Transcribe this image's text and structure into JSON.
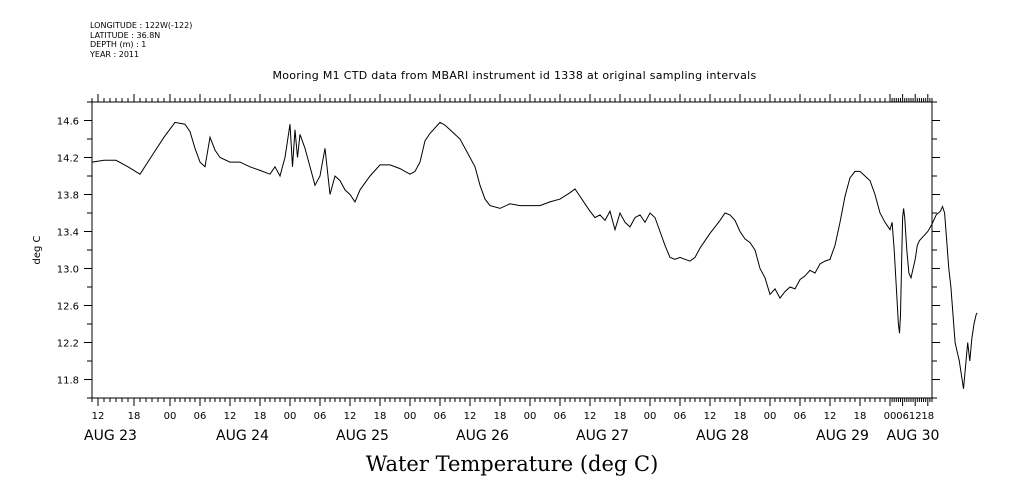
{
  "header": {
    "longitude": "LONGITUDE : 122W(-122)",
    "latitude": "LATITUDE : 36.8N",
    "depth": "DEPTH (m) : 1",
    "year": "YEAR : 2011"
  },
  "chart_data": {
    "type": "line",
    "title": "Mooring M1 CTD data from MBARI instrument id 1338 at original sampling intervals",
    "subtitle": "Water Temperature (deg C)",
    "xlabel": "",
    "ylabel": "deg C",
    "ylim": [
      11.6,
      14.8
    ],
    "xlim_hours_from_aug23_00": [
      -13,
      164
    ],
    "y_ticks": [
      "11.8",
      "12.2",
      "12.6",
      "13.0",
      "13.4",
      "13.8",
      "14.2",
      "14.6"
    ],
    "y_tick_values": [
      11.8,
      12.2,
      12.6,
      13.0,
      13.4,
      13.8,
      14.2,
      14.6
    ],
    "x_hour_ticks": [
      {
        "h": -12,
        "label": "12"
      },
      {
        "h": -6,
        "label": "18"
      },
      {
        "h": 0,
        "label": "00"
      },
      {
        "h": 6,
        "label": "06"
      },
      {
        "h": 12,
        "label": "12"
      },
      {
        "h": 18,
        "label": "18"
      },
      {
        "h": 24,
        "label": "00"
      },
      {
        "h": 30,
        "label": "06"
      },
      {
        "h": 36,
        "label": "12"
      },
      {
        "h": 42,
        "label": "18"
      },
      {
        "h": 48,
        "label": "00"
      },
      {
        "h": 54,
        "label": "06"
      },
      {
        "h": 60,
        "label": "12"
      },
      {
        "h": 66,
        "label": "18"
      },
      {
        "h": 72,
        "label": "00"
      },
      {
        "h": 78,
        "label": "06"
      },
      {
        "h": 84,
        "label": "12"
      },
      {
        "h": 90,
        "label": "18"
      },
      {
        "h": 96,
        "label": "00"
      },
      {
        "h": 102,
        "label": "06"
      },
      {
        "h": 108,
        "label": "12"
      },
      {
        "h": 114,
        "label": "18"
      },
      {
        "h": 120,
        "label": "00"
      },
      {
        "h": 126,
        "label": "06"
      },
      {
        "h": 132,
        "label": "12"
      },
      {
        "h": 138,
        "label": "18"
      },
      {
        "h": 144,
        "label": "00"
      },
      {
        "h": 150,
        "label": "06"
      },
      {
        "h": 156,
        "label": "12"
      },
      {
        "h": 162,
        "label": "18"
      }
    ],
    "x_date_labels": [
      {
        "h": -12,
        "label": "AUG 23"
      },
      {
        "h": 12,
        "label": "AUG 24"
      },
      {
        "h": 36,
        "label": "AUG 25"
      },
      {
        "h": 60,
        "label": "AUG 26"
      },
      {
        "h": 84,
        "label": "AUG 27"
      },
      {
        "h": 108,
        "label": "AUG 28"
      },
      {
        "h": 132,
        "label": "AUG 29"
      },
      {
        "h": 149,
        "label": "AUG 30"
      }
    ],
    "series": [
      {
        "line_color": "#000000",
        "points": [
          [
            -13,
            14.15
          ],
          [
            -11,
            14.17
          ],
          [
            -9,
            14.17
          ],
          [
            -7,
            14.1
          ],
          [
            -5,
            14.02
          ],
          [
            -3,
            14.22
          ],
          [
            -1,
            14.42
          ],
          [
            1,
            14.58
          ],
          [
            3,
            14.56
          ],
          [
            4,
            14.48
          ],
          [
            5,
            14.3
          ],
          [
            6,
            14.15
          ],
          [
            7,
            14.1
          ],
          [
            8,
            14.42
          ],
          [
            9,
            14.28
          ],
          [
            10,
            14.2
          ],
          [
            12,
            14.15
          ],
          [
            14,
            14.15
          ],
          [
            16,
            14.1
          ],
          [
            18,
            14.06
          ],
          [
            20,
            14.02
          ],
          [
            21,
            14.1
          ],
          [
            22,
            14.0
          ],
          [
            23,
            14.2
          ],
          [
            24,
            14.56
          ],
          [
            24.5,
            14.1
          ],
          [
            25,
            14.5
          ],
          [
            25.5,
            14.2
          ],
          [
            26,
            14.45
          ],
          [
            27,
            14.3
          ],
          [
            28,
            14.1
          ],
          [
            29,
            13.9
          ],
          [
            30,
            14.0
          ],
          [
            31,
            14.3
          ],
          [
            32,
            13.8
          ],
          [
            33,
            14.0
          ],
          [
            34,
            13.95
          ],
          [
            35,
            13.85
          ],
          [
            36,
            13.8
          ],
          [
            37,
            13.72
          ],
          [
            38,
            13.85
          ],
          [
            40,
            14.0
          ],
          [
            42,
            14.12
          ],
          [
            44,
            14.12
          ],
          [
            46,
            14.08
          ],
          [
            48,
            14.02
          ],
          [
            49,
            14.05
          ],
          [
            50,
            14.15
          ],
          [
            51,
            14.38
          ],
          [
            52,
            14.46
          ],
          [
            54,
            14.58
          ],
          [
            55,
            14.55
          ],
          [
            56,
            14.5
          ],
          [
            58,
            14.4
          ],
          [
            60,
            14.2
          ],
          [
            61,
            14.1
          ],
          [
            62,
            13.9
          ],
          [
            63,
            13.75
          ],
          [
            64,
            13.68
          ],
          [
            66,
            13.65
          ],
          [
            68,
            13.7
          ],
          [
            70,
            13.68
          ],
          [
            72,
            13.68
          ],
          [
            74,
            13.68
          ],
          [
            76,
            13.72
          ],
          [
            78,
            13.75
          ],
          [
            80,
            13.82
          ],
          [
            81,
            13.86
          ],
          [
            82,
            13.78
          ],
          [
            83,
            13.7
          ],
          [
            84,
            13.62
          ],
          [
            85,
            13.55
          ],
          [
            86,
            13.58
          ],
          [
            87,
            13.52
          ],
          [
            88,
            13.62
          ],
          [
            89,
            13.42
          ],
          [
            90,
            13.6
          ],
          [
            91,
            13.5
          ],
          [
            92,
            13.45
          ],
          [
            93,
            13.55
          ],
          [
            94,
            13.58
          ],
          [
            95,
            13.5
          ],
          [
            96,
            13.6
          ],
          [
            97,
            13.55
          ],
          [
            98,
            13.4
          ],
          [
            99,
            13.25
          ],
          [
            100,
            13.12
          ],
          [
            101,
            13.1
          ],
          [
            102,
            13.12
          ],
          [
            103,
            13.1
          ],
          [
            104,
            13.08
          ],
          [
            105,
            13.12
          ],
          [
            106,
            13.22
          ],
          [
            107,
            13.3
          ],
          [
            108,
            13.38
          ],
          [
            109,
            13.45
          ],
          [
            110,
            13.52
          ],
          [
            111,
            13.6
          ],
          [
            112,
            13.58
          ],
          [
            113,
            13.52
          ],
          [
            114,
            13.4
          ],
          [
            115,
            13.32
          ],
          [
            116,
            13.28
          ],
          [
            117,
            13.2
          ],
          [
            118,
            13.0
          ],
          [
            119,
            12.9
          ],
          [
            120,
            12.72
          ],
          [
            121,
            12.78
          ],
          [
            122,
            12.68
          ],
          [
            123,
            12.75
          ],
          [
            124,
            12.8
          ],
          [
            125,
            12.78
          ],
          [
            126,
            12.88
          ],
          [
            127,
            12.92
          ],
          [
            128,
            12.98
          ],
          [
            129,
            12.95
          ],
          [
            130,
            13.05
          ],
          [
            131,
            13.08
          ],
          [
            132,
            13.1
          ],
          [
            133,
            13.25
          ],
          [
            134,
            13.5
          ],
          [
            135,
            13.78
          ],
          [
            136,
            13.98
          ],
          [
            137,
            14.05
          ],
          [
            138,
            14.05
          ],
          [
            139,
            14.0
          ],
          [
            140,
            13.95
          ],
          [
            141,
            13.8
          ],
          [
            142,
            13.6
          ],
          [
            143,
            13.5
          ],
          [
            144,
            13.42
          ],
          [
            145,
            13.5
          ],
          [
            146,
            13.2
          ],
          [
            147,
            12.8
          ],
          [
            148,
            12.4
          ],
          [
            148.5,
            12.3
          ],
          [
            149,
            12.5
          ],
          [
            149.5,
            13.0
          ],
          [
            150,
            13.55
          ],
          [
            150.5,
            13.65
          ],
          [
            151,
            13.55
          ],
          [
            152,
            13.2
          ],
          [
            153,
            12.95
          ],
          [
            154,
            12.9
          ],
          [
            155,
            13.0
          ],
          [
            156,
            13.1
          ],
          [
            157,
            13.25
          ],
          [
            158,
            13.3
          ],
          [
            160,
            13.35
          ],
          [
            162,
            13.4
          ],
          [
            164,
            13.48
          ],
          [
            166,
            13.58
          ],
          [
            168,
            13.62
          ],
          [
            169,
            13.67
          ],
          [
            170,
            13.6
          ],
          [
            171,
            13.3
          ],
          [
            172,
            13.0
          ],
          [
            173,
            12.8
          ],
          [
            174,
            12.5
          ],
          [
            175,
            12.2
          ],
          [
            176,
            12.1
          ],
          [
            177,
            12.0
          ],
          [
            178,
            11.85
          ],
          [
            179,
            11.7
          ],
          [
            180,
            11.95
          ],
          [
            181,
            12.2
          ],
          [
            182,
            12.0
          ],
          [
            183,
            12.25
          ],
          [
            184,
            12.4
          ],
          [
            185,
            12.5
          ],
          [
            185.5,
            12.52
          ]
        ]
      }
    ]
  }
}
